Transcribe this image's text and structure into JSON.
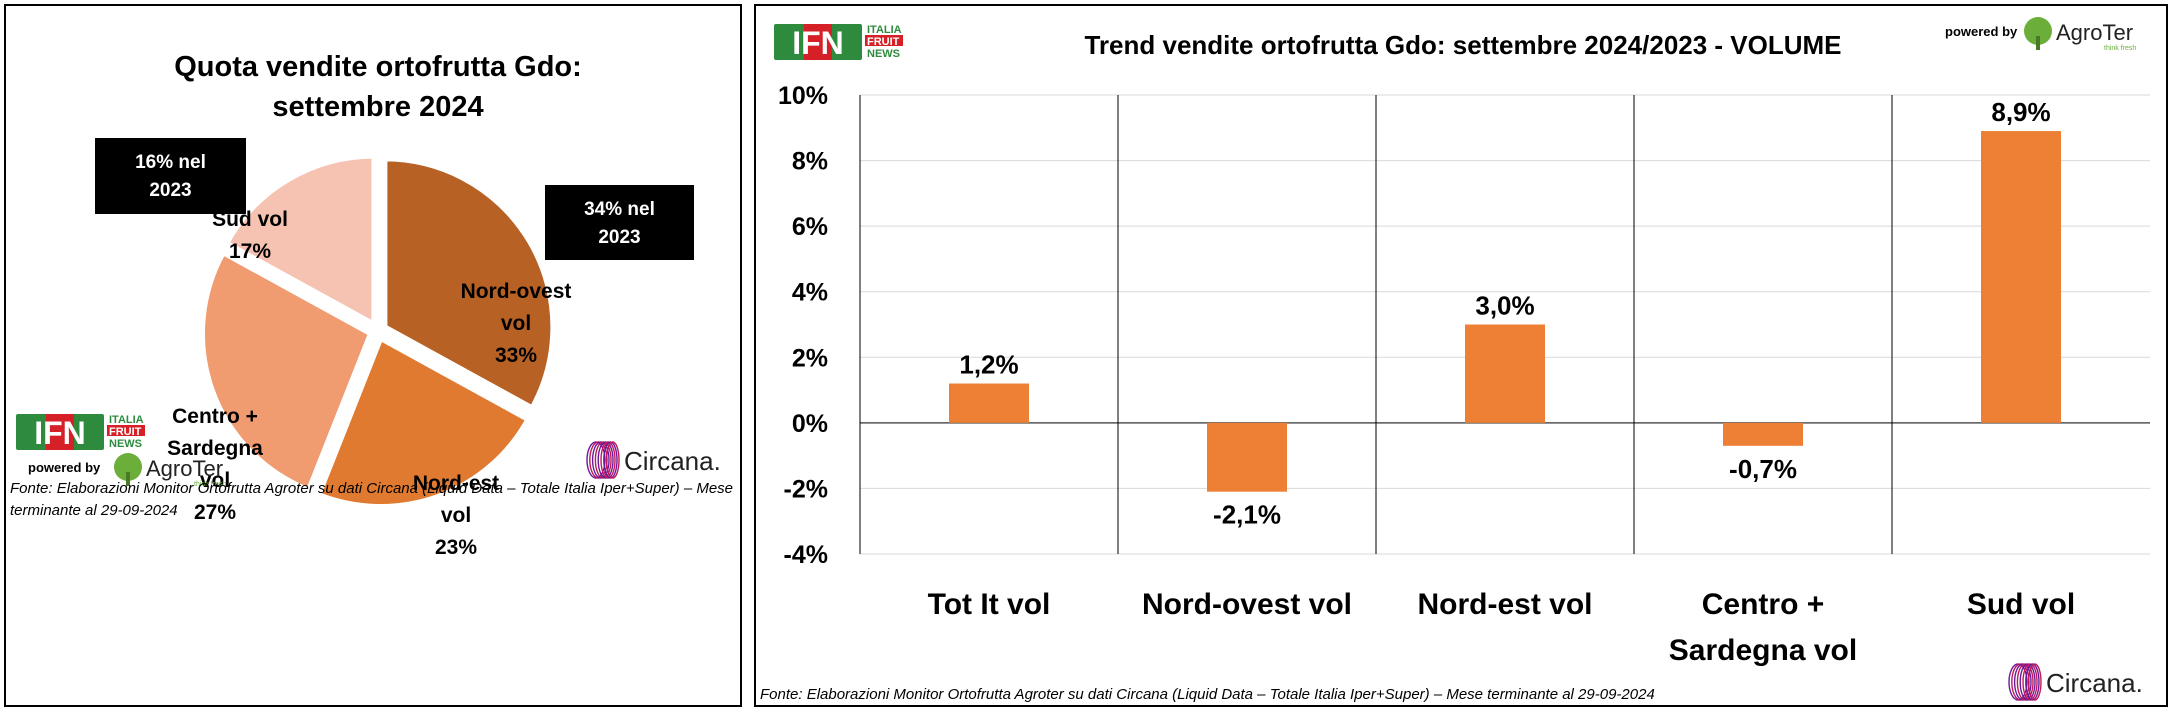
{
  "branding": {
    "ifn_text": "IFN",
    "ifn_sub": [
      "ITALIA",
      "FRUIT",
      "NEWS"
    ],
    "powered_by": "powered by",
    "agroter": "AgroTer",
    "agroter_tag": "think fresh",
    "circana": "Circana."
  },
  "source_note": "Fonte: Elaborazioni Monitor Ortofrutta Agroter su dati Circana (Liquid Data – Totale Italia Iper+Super) – Mese terminante al 29-09-2024",
  "source_note_left": [
    "Fonte: Elaborazioni Monitor Ortofrutta Agroter su dati Circana (Liquid Data – Totale Italia Iper+Super) – Mese",
    "terminante al 29-09-2024"
  ],
  "colors": {
    "nord_ovest": "#B86125",
    "nord_est": "#E07A30",
    "centro": "#F09B70",
    "sud": "#F6C2B2",
    "bar": "#ED8034"
  },
  "chart_data": [
    {
      "type": "pie",
      "title": [
        "Quota vendite ortofrutta Gdo:",
        "settembre 2024"
      ],
      "slices": [
        {
          "label": [
            "Nord-ovest",
            "vol",
            "33%"
          ],
          "value": 33,
          "color_key": "nord_ovest",
          "note": [
            "34% nel",
            "2023"
          ]
        },
        {
          "label": [
            "Nord-est",
            "vol",
            "23%"
          ],
          "value": 23,
          "color_key": "nord_est"
        },
        {
          "label": [
            "Centro +",
            "Sardegna",
            "vol",
            "27%"
          ],
          "value": 27,
          "color_key": "centro"
        },
        {
          "label": [
            "Sud vol",
            "17%"
          ],
          "value": 17,
          "color_key": "sud",
          "note": [
            "16% nel",
            "2023"
          ]
        }
      ]
    },
    {
      "type": "bar",
      "title": "Trend vendite ortofrutta Gdo: settembre 2024/2023 - VOLUME",
      "categories": [
        [
          "Tot It  vol"
        ],
        [
          "Nord-ovest vol"
        ],
        [
          "Nord-est vol"
        ],
        [
          "Centro +",
          "Sardegna vol"
        ],
        [
          "Sud vol"
        ]
      ],
      "values": [
        1.2,
        -2.1,
        3.0,
        -0.7,
        8.9
      ],
      "value_labels": [
        "1,2%",
        "-2,1%",
        "3,0%",
        "-0,7%",
        "8,9%"
      ],
      "ylim": [
        -4,
        10
      ],
      "yticks": [
        10,
        8,
        6,
        4,
        2,
        0,
        -2,
        -4
      ],
      "ytick_labels": [
        "10%",
        "8%",
        "6%",
        "4%",
        "2%",
        "0%",
        "-2%",
        "-4%"
      ],
      "grid": true
    }
  ]
}
